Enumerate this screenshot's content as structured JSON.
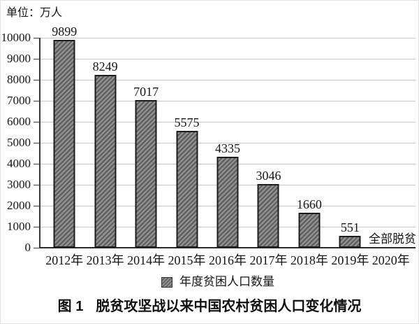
{
  "unit_label": "单位：万人",
  "legend_label": "年度贫困人口数量",
  "caption_prefix": "图 1",
  "caption_title": "脱贫攻坚战以来中国农村贫困人口变化情况",
  "final_annotation": "全部脱贫",
  "colors": {
    "bar_fill": "#8f8f8f",
    "bar_hatch": "#5c5c5c",
    "bar_border": "#1c1c1c",
    "gridline": "#c6c6c6",
    "axis": "#3a3a3a",
    "text": "#151515"
  },
  "chart_data": {
    "type": "bar",
    "title": "图 1 脱贫攻坚战以来中国农村贫困人口变化情况",
    "unit": "万人",
    "categories": [
      "2012年",
      "2013年",
      "2014年",
      "2015年",
      "2016年",
      "2017年",
      "2018年",
      "2019年",
      "2020年"
    ],
    "values": [
      9899,
      8249,
      7017,
      5575,
      4335,
      3046,
      1660,
      551,
      null
    ],
    "data_labels": [
      "9899",
      "8249",
      "7017",
      "5575",
      "4335",
      "3046",
      "1660",
      "551",
      "全部脱贫"
    ],
    "xlabel": "",
    "ylabel": "单位：万人",
    "ylim": [
      0,
      10000
    ],
    "ytick_step": 1000,
    "yticks": [
      0,
      1000,
      2000,
      3000,
      4000,
      5000,
      6000,
      7000,
      8000,
      9000,
      10000
    ],
    "legend": [
      "年度贫困人口数量"
    ],
    "legend_position": "bottom",
    "grid": "horizontal",
    "annotations": [
      {
        "x": "2020年",
        "text": "全部脱贫"
      }
    ]
  }
}
